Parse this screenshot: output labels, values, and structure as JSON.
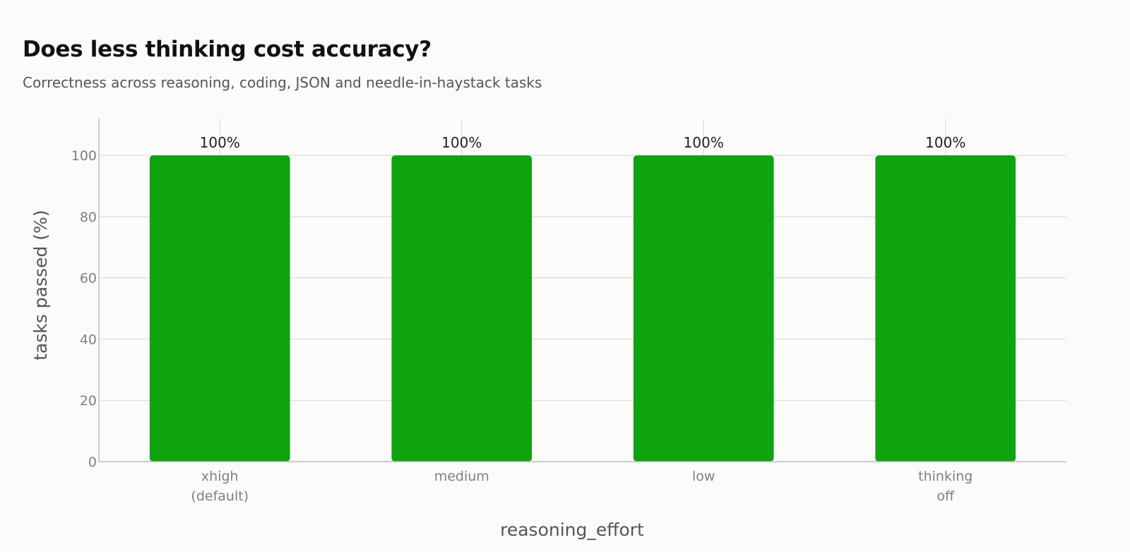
{
  "title": "Does less thinking cost accuracy?",
  "subtitle": "Correctness across reasoning, coding, JSON and needle-in-haystack tasks",
  "colors": {
    "bar": "#0ea30f",
    "grid": "#e0e0e0",
    "axis": "#bcbcbc"
  },
  "chart_data": {
    "type": "bar",
    "categories": [
      [
        "xhigh",
        "(default)"
      ],
      [
        "medium"
      ],
      [
        "low"
      ],
      [
        "thinking",
        "off"
      ]
    ],
    "values": [
      100,
      100,
      100,
      100
    ],
    "value_labels": [
      "100%",
      "100%",
      "100%",
      "100%"
    ],
    "xlabel": "reasoning_effort",
    "ylabel": "tasks passed (%)",
    "ylim": [
      0,
      112
    ],
    "yticks": [
      0,
      20,
      40,
      60,
      80,
      100
    ],
    "grid": true
  }
}
